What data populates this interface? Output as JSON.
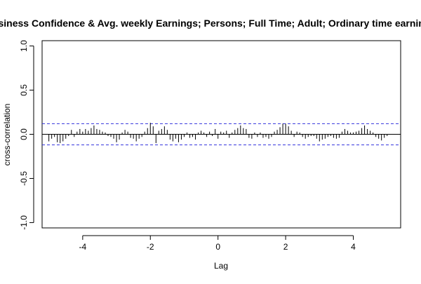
{
  "chart_data": {
    "type": "bar",
    "title": "Business Confidence & Avg. weekly Earnings; Persons; Full Time; Adult; Ordinary time earnings",
    "xlabel": "Lag",
    "ylabel": "cross-correlation",
    "xlim": [
      -5.2,
      5.4
    ],
    "ylim": [
      -1.06,
      1.06
    ],
    "x_ticks": [
      -4,
      -2,
      0,
      2,
      4
    ],
    "x_tick_labels": [
      "-4",
      "-2",
      "0",
      "2",
      "4"
    ],
    "y_ticks": [
      -1.0,
      -0.5,
      0.0,
      0.5,
      1.0
    ],
    "y_tick_labels": [
      "-1.0",
      "-0.5",
      "0.0",
      "0.5",
      "1.0"
    ],
    "confidence_band": [
      0.12,
      -0.12
    ],
    "grid": false,
    "lag_step": 0.0833,
    "lags": [
      -5.0,
      -4.9167,
      -4.8333,
      -4.75,
      -4.6667,
      -4.5833,
      -4.5,
      -4.4167,
      -4.3333,
      -4.25,
      -4.1667,
      -4.0833,
      -4.0,
      -3.9167,
      -3.8333,
      -3.75,
      -3.6667,
      -3.5833,
      -3.5,
      -3.4167,
      -3.3333,
      -3.25,
      -3.1667,
      -3.0833,
      -3.0,
      -2.9167,
      -2.8333,
      -2.75,
      -2.6667,
      -2.5833,
      -2.5,
      -2.4167,
      -2.3333,
      -2.25,
      -2.1667,
      -2.0833,
      -2.0,
      -1.9167,
      -1.8333,
      -1.75,
      -1.6667,
      -1.5833,
      -1.5,
      -1.4167,
      -1.3333,
      -1.25,
      -1.1667,
      -1.0833,
      -1.0,
      -0.9167,
      -0.8333,
      -0.75,
      -0.6667,
      -0.5833,
      -0.5,
      -0.4167,
      -0.3333,
      -0.25,
      -0.1667,
      -0.0833,
      0.0,
      0.0833,
      0.1667,
      0.25,
      0.3333,
      0.4167,
      0.5,
      0.5833,
      0.6667,
      0.75,
      0.8333,
      0.9167,
      1.0,
      1.0833,
      1.1667,
      1.25,
      1.3333,
      1.4167,
      1.5,
      1.5833,
      1.6667,
      1.75,
      1.8333,
      1.9167,
      2.0,
      2.0833,
      2.1667,
      2.25,
      2.3333,
      2.4167,
      2.5,
      2.5833,
      2.6667,
      2.75,
      2.8333,
      2.9167,
      3.0,
      3.0833,
      3.1667,
      3.25,
      3.3333,
      3.4167,
      3.5,
      3.5833,
      3.6667,
      3.75,
      3.8333,
      3.9167,
      4.0,
      4.0833,
      4.1667,
      4.25,
      4.3333,
      4.4167,
      4.5,
      4.5833,
      4.6667,
      4.75,
      4.8333,
      4.9167,
      5.0
    ],
    "values": [
      -0.08,
      -0.05,
      -0.03,
      -0.09,
      -0.1,
      -0.08,
      -0.05,
      -0.02,
      0.05,
      -0.03,
      0.03,
      0.06,
      0.03,
      0.06,
      0.04,
      0.07,
      0.1,
      0.06,
      0.05,
      0.03,
      0.02,
      -0.02,
      -0.03,
      -0.05,
      -0.09,
      -0.06,
      0.02,
      0.05,
      0.03,
      -0.04,
      -0.05,
      -0.08,
      -0.05,
      -0.03,
      0.03,
      0.07,
      0.13,
      0.09,
      -0.1,
      0.04,
      0.06,
      0.09,
      0.05,
      -0.06,
      -0.08,
      -0.05,
      -0.09,
      -0.06,
      -0.03,
      0.02,
      -0.04,
      -0.03,
      -0.06,
      0.02,
      0.04,
      0.02,
      -0.03,
      0.03,
      -0.02,
      0.06,
      -0.05,
      0.03,
      0.02,
      0.04,
      -0.04,
      0.02,
      0.05,
      0.07,
      0.1,
      0.07,
      0.06,
      -0.04,
      -0.05,
      0.02,
      -0.03,
      0.02,
      -0.04,
      -0.03,
      -0.05,
      -0.03,
      0.03,
      0.05,
      0.08,
      0.12,
      0.12,
      0.09,
      0.04,
      -0.03,
      0.03,
      0.02,
      -0.03,
      -0.05,
      -0.03,
      -0.02,
      -0.02,
      -0.05,
      -0.08,
      -0.06,
      -0.05,
      -0.03,
      -0.02,
      -0.04,
      -0.05,
      -0.04,
      0.03,
      0.06,
      0.04,
      0.02,
      0.02,
      0.03,
      0.04,
      0.07,
      0.1,
      0.06,
      0.04,
      0.02,
      -0.03,
      -0.05,
      -0.07,
      -0.04,
      -0.02
    ]
  }
}
